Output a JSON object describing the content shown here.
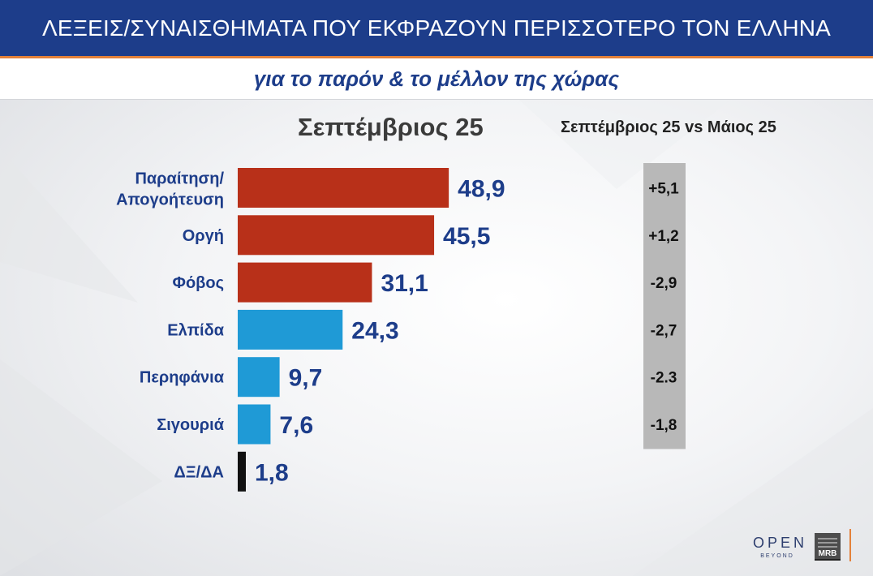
{
  "header": {
    "title": "ΛΕΞΕΙΣ/ΣΥΝΑΙΣΘΗΜΑΤΑ ΠΟΥ ΕΚΦΡΑΖΟΥΝ ΠΕΡΙΣΣΟΤΕΡΟ ΤΟΝ ΕΛΛΗΝΑ"
  },
  "subheader": {
    "subtitle": "για το παρόν & το μέλλον της χώρας"
  },
  "logos": {
    "open": "OPEN",
    "open_tagline": "BEYOND",
    "mrb": "MRB"
  },
  "colors": {
    "header_bg": "#1d3d8a",
    "accent_line": "#e3813a",
    "negative_bar": "#b83019",
    "positive_bar": "#1f9ad6",
    "neutral_bar": "#111111",
    "label_text": "#1d3d8a",
    "delta_box": "#b8b8b8"
  },
  "chart_data": {
    "type": "bar",
    "orientation": "horizontal",
    "title": "Σεπτέμβριος 25",
    "delta_title": "Σεπτέμβριος 25 vs Μάιος 25",
    "categories": [
      "Παραίτηση/\nΑπογοήτευση",
      "Οργή",
      "Φόβος",
      "Ελπίδα",
      "Περηφάνια",
      "Σιγουριά",
      "ΔΞ/ΔΑ"
    ],
    "values": [
      48.9,
      45.5,
      31.1,
      24.3,
      9.7,
      7.6,
      1.8
    ],
    "value_labels": [
      "48,9",
      "45,5",
      "31,1",
      "24,3",
      "9,7",
      "7,6",
      "1,8"
    ],
    "bar_colors": [
      "#b83019",
      "#b83019",
      "#b83019",
      "#1f9ad6",
      "#1f9ad6",
      "#1f9ad6",
      "#111111"
    ],
    "deltas": [
      "+5,1",
      "+1,2",
      "-2,9",
      "-2,7",
      "-2.3",
      "-1,8"
    ]
  }
}
